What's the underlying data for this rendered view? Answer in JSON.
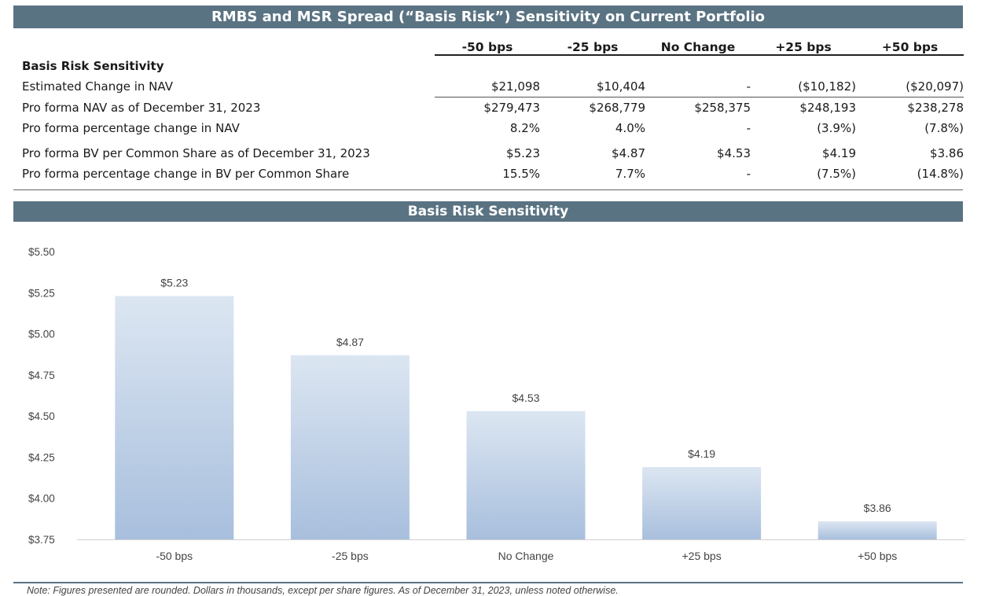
{
  "top_title": "RMBS and MSR Spread (“Basis Risk”) Sensitivity on Current Portfolio",
  "table": {
    "columns": [
      "-50 bps",
      "-25 bps",
      "No Change",
      "+25 bps",
      "+50 bps"
    ],
    "section_title": "Basis Risk Sensitivity",
    "rows": [
      {
        "label": "Estimated Change in NAV",
        "values": [
          "$21,098",
          "$10,404",
          "-",
          "($10,182)",
          "($20,097)"
        ]
      },
      {
        "label": "Pro forma NAV as of December 31, 2023",
        "values": [
          "$279,473",
          "$268,779",
          "$258,375",
          "$248,193",
          "$238,278"
        ]
      },
      {
        "label": "Pro forma percentage change in NAV",
        "values": [
          "8.2%",
          "4.0%",
          "-",
          "(3.9%)",
          "(7.8%)"
        ]
      },
      {
        "label": "Pro forma BV per Common Share as of December 31, 2023",
        "values": [
          "$5.23",
          "$4.87",
          "$4.53",
          "$4.19",
          "$3.86"
        ]
      },
      {
        "label": "Pro forma percentage change in BV per Common Share",
        "values": [
          "15.5%",
          "7.7%",
          "-",
          "(7.5%)",
          "(14.8%)"
        ]
      }
    ]
  },
  "chart_data": {
    "type": "bar",
    "title": "Basis Risk Sensitivity",
    "categories": [
      "-50 bps",
      "-25 bps",
      "No Change",
      "+25 bps",
      "+50 bps"
    ],
    "values": [
      5.23,
      4.87,
      4.53,
      4.19,
      3.86
    ],
    "value_labels": [
      "$5.23",
      "$4.87",
      "$4.53",
      "$4.19",
      "$3.86"
    ],
    "yticks": [
      3.75,
      4.0,
      4.25,
      4.5,
      4.75,
      5.0,
      5.25,
      5.5
    ],
    "ytick_labels": [
      "$3.75",
      "$4.00",
      "$4.25",
      "$4.50",
      "$4.75",
      "$5.00",
      "$5.25",
      "$5.50"
    ],
    "ylim": [
      3.75,
      5.5
    ],
    "xlabel": "",
    "ylabel": "",
    "grid": false,
    "bar_color_top": "#dce6f2",
    "bar_color_bottom": "#a8bfdd"
  },
  "note": "Note: Figures presented are rounded. Dollars in thousands, except per share figures. As of December 31, 2023, unless noted otherwise."
}
